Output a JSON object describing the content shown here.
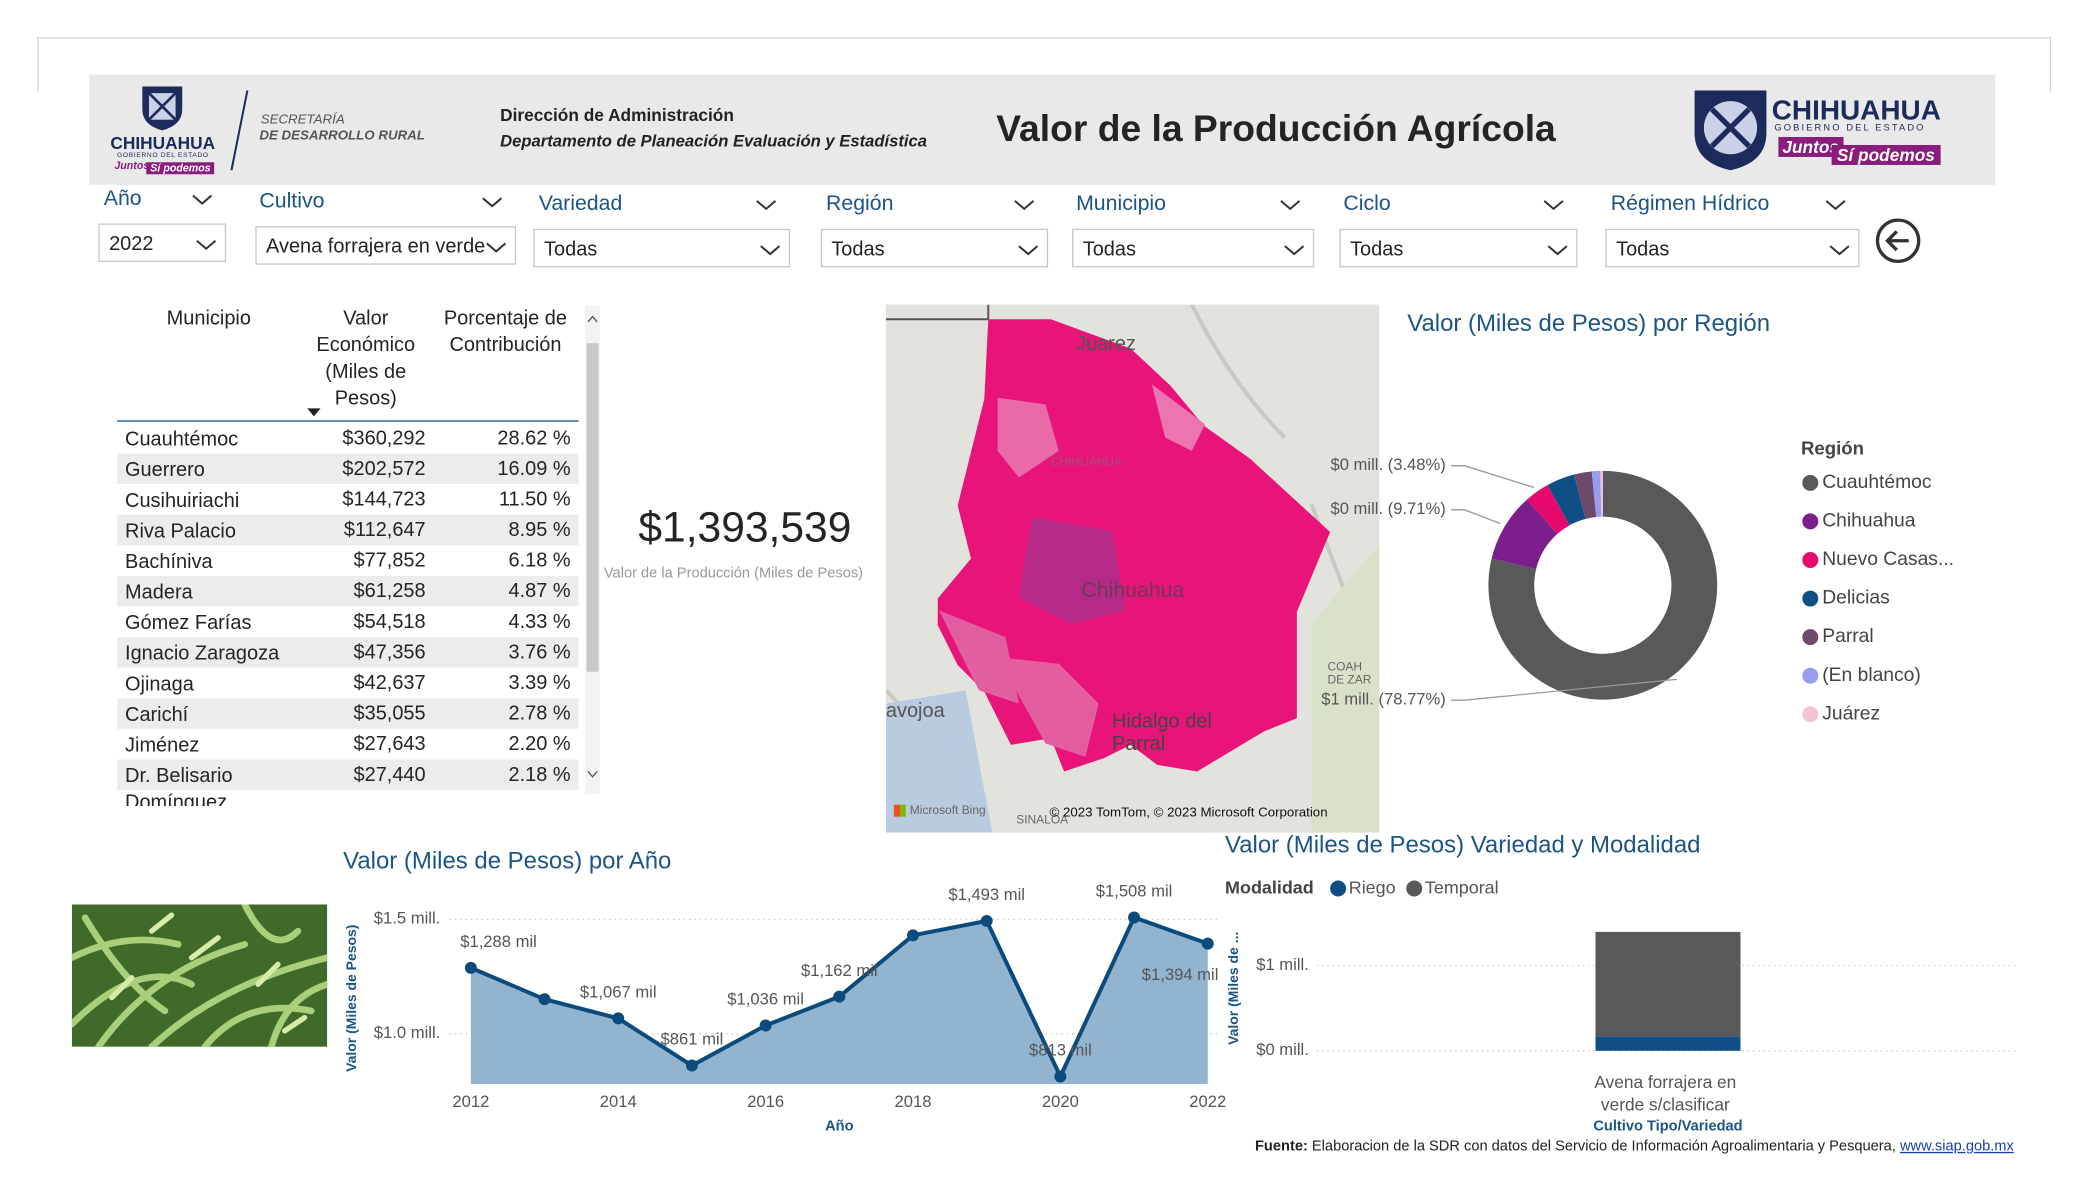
{
  "header": {
    "logo_left": {
      "name": "CHIHUAHUA",
      "subtitle": "GOBIERNO DEL ESTADO",
      "slogan_1": "Juntos",
      "slogan_2": "Sí podemos"
    },
    "secretaria": [
      "SECRETARÍA",
      "DE DESARROLLO RURAL"
    ],
    "direccion": "Dirección de Administración",
    "departamento": "Departamento de Planeación Evaluación y Estadística",
    "title": "Valor de la Producción Agrícola",
    "logo_right": {
      "name": "CHIHUAHUA",
      "subtitle": "GOBIERNO DEL ESTADO",
      "slogan_1": "Juntos",
      "slogan_2": "Sí podemos"
    }
  },
  "filters": [
    {
      "label": "Año",
      "value": "2022"
    },
    {
      "label": "Cultivo",
      "value": "Avena forrajera en verde"
    },
    {
      "label": "Variedad",
      "value": "Todas"
    },
    {
      "label": "Región",
      "value": "Todas"
    },
    {
      "label": "Municipio",
      "value": "Todas"
    },
    {
      "label": "Ciclo",
      "value": "Todas"
    },
    {
      "label": "Régimen Hídrico",
      "value": "Todas"
    }
  ],
  "table": {
    "columns": [
      "Municipio",
      "Valor Económico (Miles de Pesos)",
      "Porcentaje de Contribución"
    ],
    "rows": [
      [
        "Cuauhtémoc",
        "$360,292",
        "28.62 %"
      ],
      [
        "Guerrero",
        "$202,572",
        "16.09 %"
      ],
      [
        "Cusihuiriachi",
        "$144,723",
        "11.50 %"
      ],
      [
        "Riva Palacio",
        "$112,647",
        "8.95 %"
      ],
      [
        "Bachíniva",
        "$77,852",
        "6.18 %"
      ],
      [
        "Madera",
        "$61,258",
        "4.87 %"
      ],
      [
        "Gómez Farías",
        "$54,518",
        "4.33 %"
      ],
      [
        "Ignacio Zaragoza",
        "$47,356",
        "3.76 %"
      ],
      [
        "Ojinaga",
        "$42,637",
        "3.39 %"
      ],
      [
        "Carichí",
        "$35,055",
        "2.78 %"
      ],
      [
        "Jiménez",
        "$27,643",
        "2.20 %"
      ],
      [
        "Dr. Belisario Domínguez",
        "$27,440",
        "2.18 %"
      ]
    ]
  },
  "kpi": {
    "value": "$1,393,539",
    "label": "Valor de la Producción (Miles de Pesos)"
  },
  "map": {
    "labels": [
      "Juarez",
      "CHIHUAHUA",
      "Chihuahua",
      "Hidalgo del Parral",
      "avojoa",
      "COAH DE ZAR",
      "SINALOA"
    ],
    "provider": "Microsoft Bing",
    "attribution": "© 2023 TomTom, © 2023 Microsoft Corporation"
  },
  "chart_data": [
    {
      "type": "line",
      "title": "Valor (Miles de Pesos) por Año",
      "x": [
        2012,
        2013,
        2014,
        2015,
        2016,
        2017,
        2018,
        2019,
        2020,
        2021,
        2022
      ],
      "values": [
        1288000,
        1151000,
        1067000,
        861000,
        1036000,
        1162000,
        1430000,
        1493000,
        813000,
        1508000,
        1394000
      ],
      "value_labels": [
        "$1,288 mil",
        null,
        "$1,067 mil",
        "$861 mil",
        "$1,036 mil",
        "$1,162 mil",
        null,
        "$1,493 mil",
        "$813 mil",
        "$1,508 mil",
        "$1,394 mil"
      ],
      "color": "#0b4a7d",
      "area_color": "#93b4cf",
      "xlim": [
        2012,
        2022
      ],
      "xticks": [
        2012,
        2014,
        2016,
        2018,
        2020,
        2022
      ],
      "ylim": [
        780000,
        1530000
      ],
      "yticks": [
        {
          "value": 1000000,
          "label": "$1.0 mill."
        },
        {
          "value": 1500000,
          "label": "$1.5 mill."
        }
      ],
      "xlabel": "Año",
      "ylabel": "Valor (Miles de Pesos)",
      "grid": true
    },
    {
      "type": "pie",
      "hole": 0.6,
      "title": "Valor (Miles de Pesos) por Región",
      "legend_title": "Región",
      "categories": [
        "Cuauhtémoc",
        "Chihuahua",
        "Nuevo Casas...",
        "Delicias",
        "Parral",
        "(En blanco)",
        "Juárez"
      ],
      "values": [
        1097691,
        135313,
        48495,
        55742,
        34838,
        16722,
        4738
      ],
      "value_labels": [
        "$1 mill. (78.77%)",
        "$0 mill. (9.71%)",
        "$0 mill. (3.48%)",
        null,
        null,
        null,
        null
      ],
      "colors": [
        "#595959",
        "#7a1f8c",
        "#e6096d",
        "#0f4f85",
        "#6e4a6a",
        "#9a9cf0",
        "#f6c2d8"
      ]
    },
    {
      "type": "bar",
      "stacked": true,
      "title": "Valor (Miles de Pesos) Variedad y Modalidad",
      "legend_title": "Modalidad",
      "categories": [
        "Avena forrajera en verde s/clasificar"
      ],
      "series": [
        {
          "name": "Riego",
          "color": "#0f4f85",
          "values": [
            170000
          ]
        },
        {
          "name": "Temporal",
          "color": "#595959",
          "values": [
            1223539
          ]
        }
      ],
      "ylim": [
        0,
        1450000
      ],
      "yticks": [
        {
          "value": 0,
          "label": "$0 mill."
        },
        {
          "value": 1000000,
          "label": "$1 mill."
        }
      ],
      "xlabel": "Cultivo Tipo/Variedad",
      "ylabel": "Valor (Miles de ...",
      "grid": true
    }
  ],
  "footer": {
    "source_label": "Fuente:",
    "source_text": "Elaboracion de la SDR con datos del Servicio de Información Agroalimentaria y Pesquera,",
    "link": "www.siap.gob.mx"
  }
}
